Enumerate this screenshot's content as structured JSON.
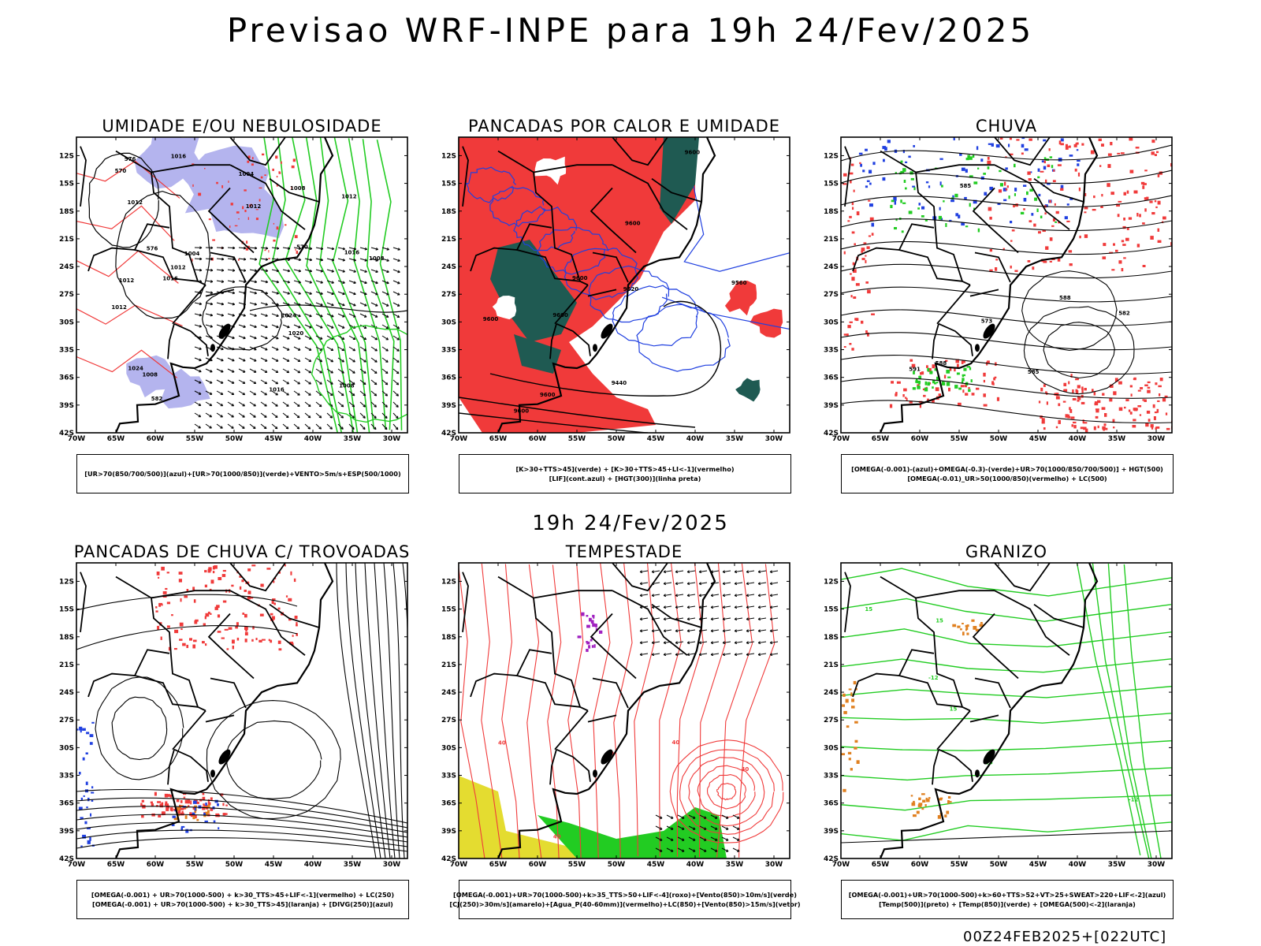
{
  "title": "Previsao WRF-INPE  para 19h 24/Fev/2025",
  "mid_time": "19h 24/Fev/2025",
  "footer": "00Z24FEB2025+[022UTC]",
  "chart_data": {
    "type": "map-panels",
    "lat_ticks": [
      "12S",
      "15S",
      "18S",
      "21S",
      "24S",
      "27S",
      "30S",
      "33S",
      "36S",
      "39S",
      "42S"
    ],
    "lon_ticks": [
      "70W",
      "65W",
      "60W",
      "55W",
      "50W",
      "45W",
      "40W",
      "35W",
      "30W"
    ],
    "lat_range": [
      -42,
      -10
    ],
    "lon_range": [
      -70,
      -28
    ],
    "panels": [
      {
        "title": "UMIDADE E/OU NEBULOSIDADE",
        "legend": [
          "[UR>70(850/700/500)](azul)+[UR>70(1000/850)](verde)+VENTO>5m/s+ESP(500/1000)"
        ],
        "contour_labels": [
          "1012",
          "1008",
          "1008",
          "1012",
          "1016",
          "1016",
          "1016",
          "1012",
          "1008",
          "1012",
          "1004",
          "1012",
          "1008",
          "1004",
          "1016",
          "1020",
          "1024",
          "1024",
          "1012",
          "570",
          "582",
          "576",
          "570",
          "576"
        ]
      },
      {
        "title": "PANCADAS POR CALOR E UMIDADE",
        "legend": [
          "[K>30+TTS>45](verde) + [K>30+TTS>45+LI<-1](vermelho)",
          "[LIF](cont.azul) + [HGT(300)](linha preta)"
        ],
        "contour_labels": [
          "9600",
          "9600",
          "9600",
          "9600",
          "9560",
          "9600",
          "9600",
          "9520",
          "9440",
          "9600"
        ]
      },
      {
        "title": "CHUVA",
        "legend": [
          "[OMEGA(-0.001)-(azul)+OMEGA(-0.3)-(verde)+UR>70(1000/850/700/500)] + HGT(500)",
          "[OMEGA(-0.01)_UR>50(1000/850)(vermelho) + LC(500)"
        ],
        "contour_labels": [
          "588",
          "588",
          "585",
          "585",
          "582",
          "573",
          "591"
        ]
      },
      {
        "title": "PANCADAS DE CHUVA C/ TROVOADAS",
        "legend": [
          "[OMEGA(-0.001) + UR>70(1000-500) + k>30_TTS>45+LIF<-1](vermelho) + LC(250)",
          "[OMEGA(-0.001) + UR>70(1000-500) + k>30_TTS>45](laranja) + [DIVG(250)](azul)"
        ],
        "contour_labels": []
      },
      {
        "title": "TEMPESTADE",
        "legend": [
          "[OMEGA(-0.001)+UR>70(1000-500)+k>35_TTS>50+LIF<-4](roxo)+[Vento(850)>10m/s](verde)",
          "[CJ(250)>30m/s](amarelo)+[Agua_P(40-60mm)](vermelho)+LC(850)+[Vento(850)>15m/s](vetor)"
        ],
        "contour_labels": [
          "40",
          "40",
          "40",
          "40",
          "40"
        ]
      },
      {
        "title": "GRANIZO",
        "legend": [
          "[OMEGA(-0.001)+UR>70(1000-500)+k>60+TTS>52+VT>25+SWEAT>220+LIF<-2](azul)",
          "[Temp(500)](preto) + [Temp(850)](verde) + [OMEGA(500)<-2](laranja)"
        ],
        "contour_labels": [
          "15",
          "15",
          "15",
          "15",
          "-12",
          "-12"
        ]
      }
    ]
  },
  "colors": {
    "red": "#f03a3a",
    "blue": "#2040e0",
    "green": "#22cc22",
    "darkgreen": "#1f5a52",
    "lavender": "#b4b4ee",
    "yellow": "#e4dc30",
    "orange": "#e08020",
    "purple": "#a020c0",
    "black": "#000000"
  }
}
